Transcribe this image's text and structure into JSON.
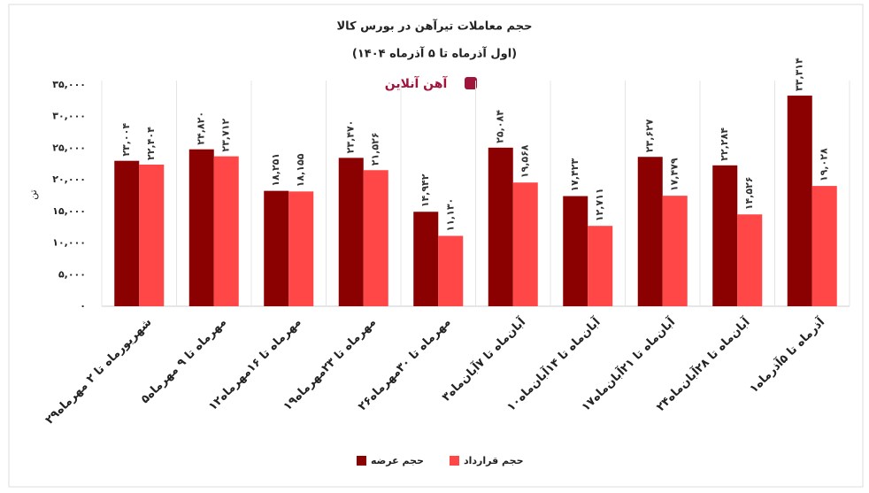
{
  "chart_data": {
    "type": "bar",
    "title": "حجم معاملات تیرآهن در بورس کالا",
    "subtitle": "(اول آذرماه تا ۵ آذرماه ۱۴۰۴)",
    "logo": "آهن آنلاین",
    "y_label": "تن",
    "categories": [
      "۲۹شهریورماه تا ۲ مهرماه",
      "۵مهرماه تا ۹ مهرماه",
      "۱۲مهرماه تا ۱۶مهرماه",
      "۱۹مهرماه تا ۲۳مهرماه",
      "۲۶مهرماه تا ۳۰مهرماه",
      "۳آبان‌ماه تا ۷آبان‌ماه",
      "۱۰آبان‌ماه تا ۱۴آبان‌ماه",
      "۱۷آبان‌ماه تا ۲۱آبان‌ماه",
      "۲۴آبان‌ماه تا ۲۸آبان‌ماه",
      "۱آذرماه تا ۵آذرماه"
    ],
    "series": [
      {
        "name": "حجم عرضه",
        "color": "#8b0000",
        "values": [
          23004,
          24820,
          18251,
          23470,
          14942,
          25084,
          17423,
          23627,
          22284,
          33314
        ],
        "value_labels": [
          "۲۳,۰۰۴",
          "۲۴,۸۲۰",
          "۱۸,۲۵۱",
          "۲۳,۴۷۰",
          "۱۴,۹۴۲",
          "۲۵,۰۸۴",
          "۱۷,۴۲۳",
          "۲۳,۶۲۷",
          "۲۲,۲۸۴",
          "۳۳,۳۱۴"
        ]
      },
      {
        "name": "حجم قرارداد",
        "color": "#ff4747",
        "values": [
          22404,
          23712,
          18155,
          21526,
          11130,
          19568,
          12711,
          17479,
          14526,
          19028
        ],
        "value_labels": [
          "۲۲,۴۰۴",
          "۲۳,۷۱۲",
          "۱۸,۱۵۵",
          "۲۱,۵۲۶",
          "۱۱,۱۳۰",
          "۱۹,۵۶۸",
          "۱۲,۷۱۱",
          "۱۷,۴۷۹",
          "۱۴,۵۲۶",
          "۱۹,۰۲۸"
        ]
      }
    ],
    "ylim": [
      0,
      35000
    ],
    "yticks": [
      {
        "value": 0,
        "label": "۰"
      },
      {
        "value": 5000,
        "label": "۵,۰۰۰"
      },
      {
        "value": 10000,
        "label": "۱۰,۰۰۰"
      },
      {
        "value": 15000,
        "label": "۱۵,۰۰۰"
      },
      {
        "value": 20000,
        "label": "۲۰,۰۰۰"
      },
      {
        "value": 25000,
        "label": "۲۵,۰۰۰"
      },
      {
        "value": 30000,
        "label": "۳۰,۰۰۰"
      },
      {
        "value": 35000,
        "label": "۳۵,۰۰۰"
      }
    ],
    "grid": false
  }
}
